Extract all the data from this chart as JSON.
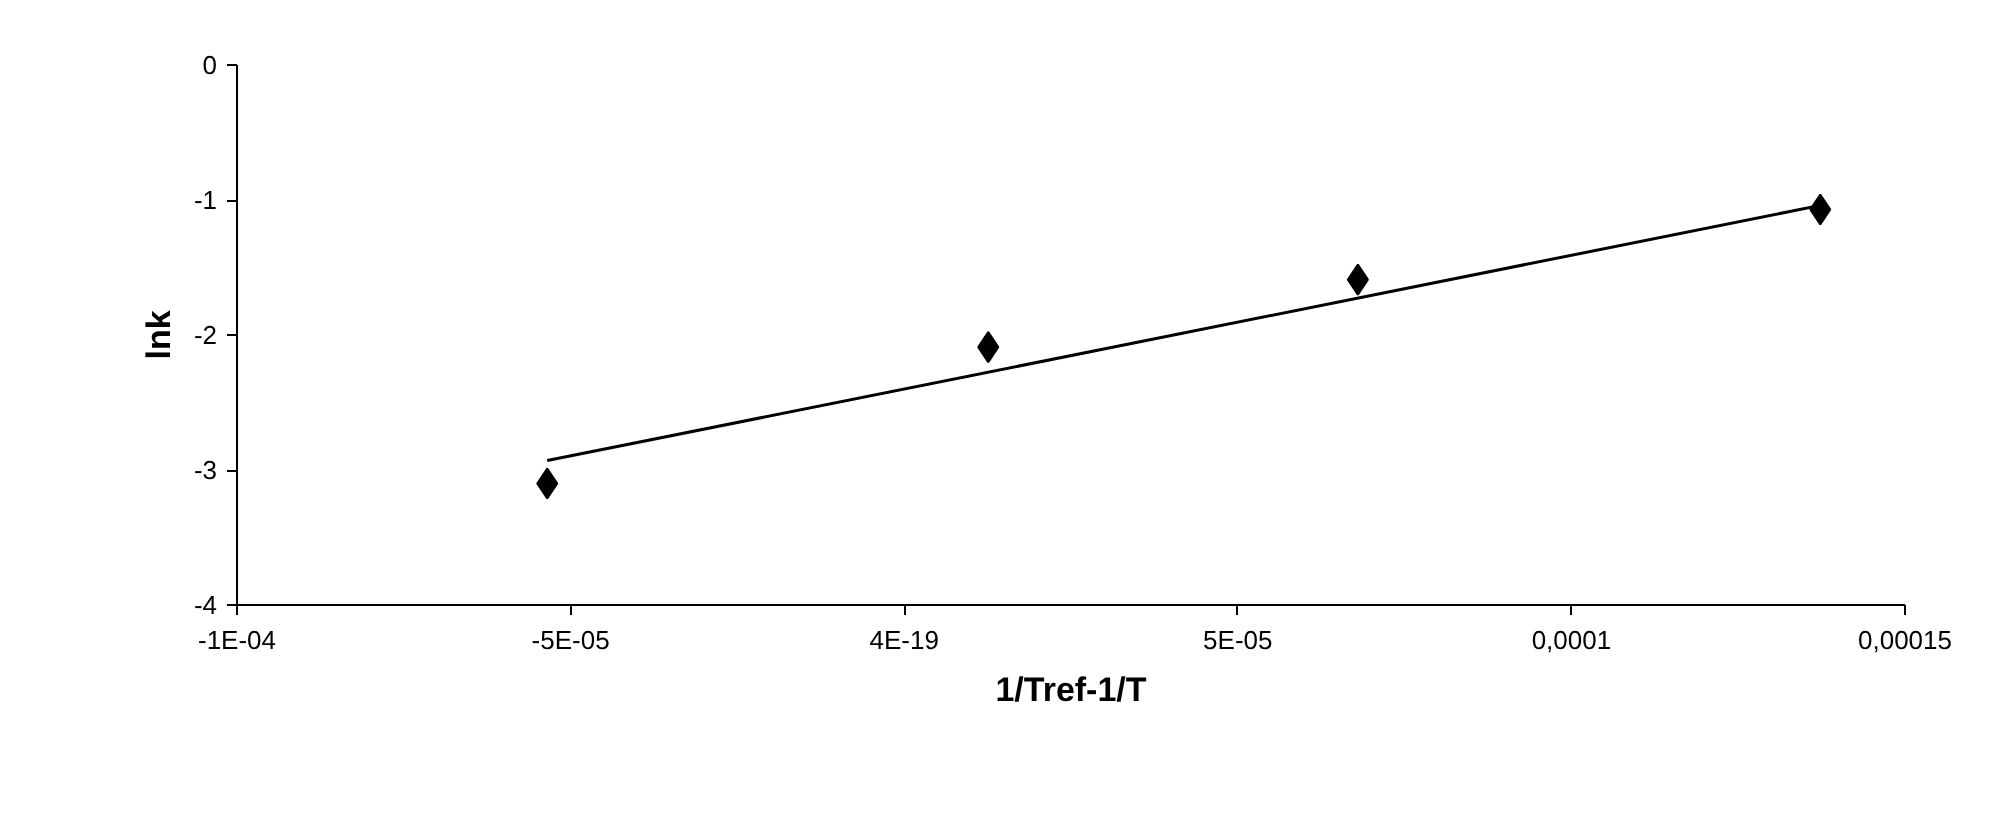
{
  "chart_data": {
    "type": "scatter",
    "xlabel": "1/Tref-1/T",
    "ylabel": "lnk",
    "xlim": [
      -0.0001,
      0.00015
    ],
    "ylim": [
      -4,
      0
    ],
    "xticks": [
      {
        "value": -0.0001,
        "label": "-1E-04"
      },
      {
        "value": -5e-05,
        "label": "-5E-05"
      },
      {
        "value": 0,
        "label": "4E-19"
      },
      {
        "value": 5e-05,
        "label": "5E-05"
      },
      {
        "value": 0.0001,
        "label": "0,0001"
      },
      {
        "value": 0.00015,
        "label": "0,00015"
      }
    ],
    "yticks": [
      -4,
      -3,
      -2,
      -1,
      0
    ],
    "series": [
      {
        "marker": "diamond",
        "color": "#000000",
        "x": [
          -5.35e-05,
          1.26e-05,
          6.8e-05,
          0.0001373
        ],
        "values": [
          -3.1,
          -2.09,
          -1.59,
          -1.07
        ]
      },
      {
        "type": "line",
        "marker": "none",
        "line_style": "solid",
        "color": "#000000",
        "x": [
          -5.35e-05,
          0.0001373
        ],
        "values": [
          -2.93,
          -1.04
        ]
      }
    ]
  }
}
